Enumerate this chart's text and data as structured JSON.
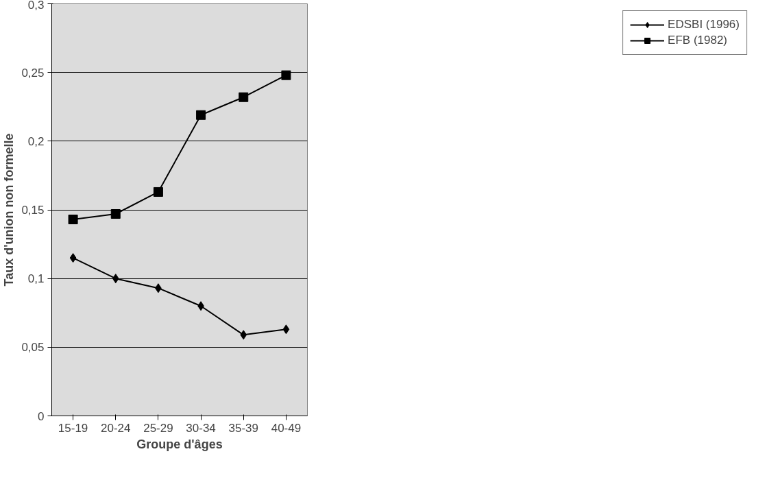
{
  "chart_data": {
    "type": "line",
    "xlabel": "Groupe d'âges",
    "ylabel": "Taux d'union non formelle",
    "categories": [
      "15-19",
      "20-24",
      "25-29",
      "30-34",
      "35-39",
      "40-49"
    ],
    "series": [
      {
        "name": "EDSBI (1996)",
        "color": "#000000",
        "marker": "diamond",
        "values": [
          0.115,
          0.1,
          0.093,
          0.08,
          0.059,
          0.063
        ]
      },
      {
        "name": "EFB (1982)",
        "color": "#000000",
        "marker": "square",
        "values": [
          0.143,
          0.147,
          0.163,
          0.219,
          0.232,
          0.248
        ]
      }
    ],
    "ylim": [
      0,
      0.3
    ],
    "yticks": [
      {
        "value": 0,
        "label": "0"
      },
      {
        "value": 0.05,
        "label": "0,05"
      },
      {
        "value": 0.1,
        "label": "0,1"
      },
      {
        "value": 0.15,
        "label": "0,15"
      },
      {
        "value": 0.2,
        "label": "0,2"
      },
      {
        "value": 0.25,
        "label": "0,25"
      },
      {
        "value": 0.3,
        "label": "0,3"
      }
    ],
    "grid": "y",
    "legend": "right",
    "line_style": "solid"
  }
}
